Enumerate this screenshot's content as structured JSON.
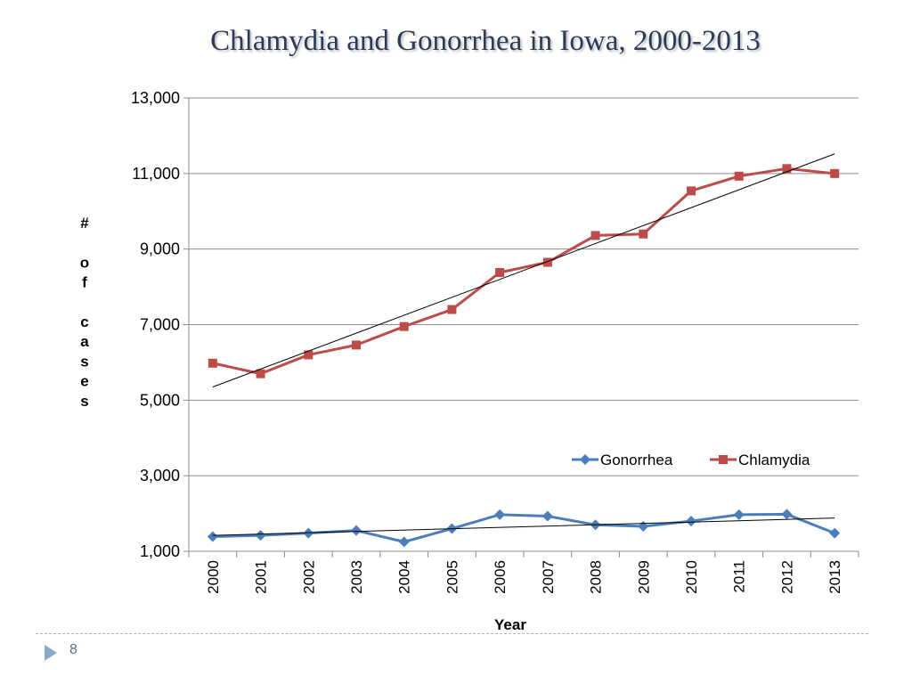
{
  "slide": {
    "title": "Chlamydia and Gonorrhea in Iowa, 2000-2013",
    "page_number": "8"
  },
  "colors": {
    "gonorrhea": "#4a7ebb",
    "chlamydia": "#be4b48",
    "trendline": "#000000",
    "gridline": "#8c8c8c"
  },
  "chart_data": {
    "type": "line",
    "title": "Chlamydia and Gonorrhea in Iowa, 2000-2013",
    "xlabel": "Year",
    "ylabel": "# of cases",
    "categories": [
      "2000",
      "2001",
      "2002",
      "2003",
      "2004",
      "2005",
      "2006",
      "2007",
      "2008",
      "2009",
      "2010",
      "2011",
      "2012",
      "2013"
    ],
    "ylim": [
      1000,
      13000
    ],
    "yticks": [
      1000,
      3000,
      5000,
      7000,
      9000,
      11000,
      13000
    ],
    "ytick_labels": [
      "1,000",
      "3,000",
      "5,000",
      "7,000",
      "9,000",
      "11,000",
      "13,000"
    ],
    "grid": true,
    "legend_position": "right",
    "series": [
      {
        "name": "Gonorrhea",
        "marker": "diamond",
        "values": [
          1390,
          1420,
          1480,
          1550,
          1250,
          1600,
          1970,
          1930,
          1700,
          1660,
          1800,
          1970,
          1980,
          1480
        ],
        "trendline": [
          1420,
          1880
        ]
      },
      {
        "name": "Chlamydia",
        "marker": "square",
        "values": [
          5980,
          5700,
          6200,
          6460,
          6950,
          7400,
          8380,
          8650,
          9360,
          9400,
          10540,
          10930,
          11130,
          11000
        ],
        "trendline": [
          5350,
          11520
        ]
      }
    ]
  }
}
